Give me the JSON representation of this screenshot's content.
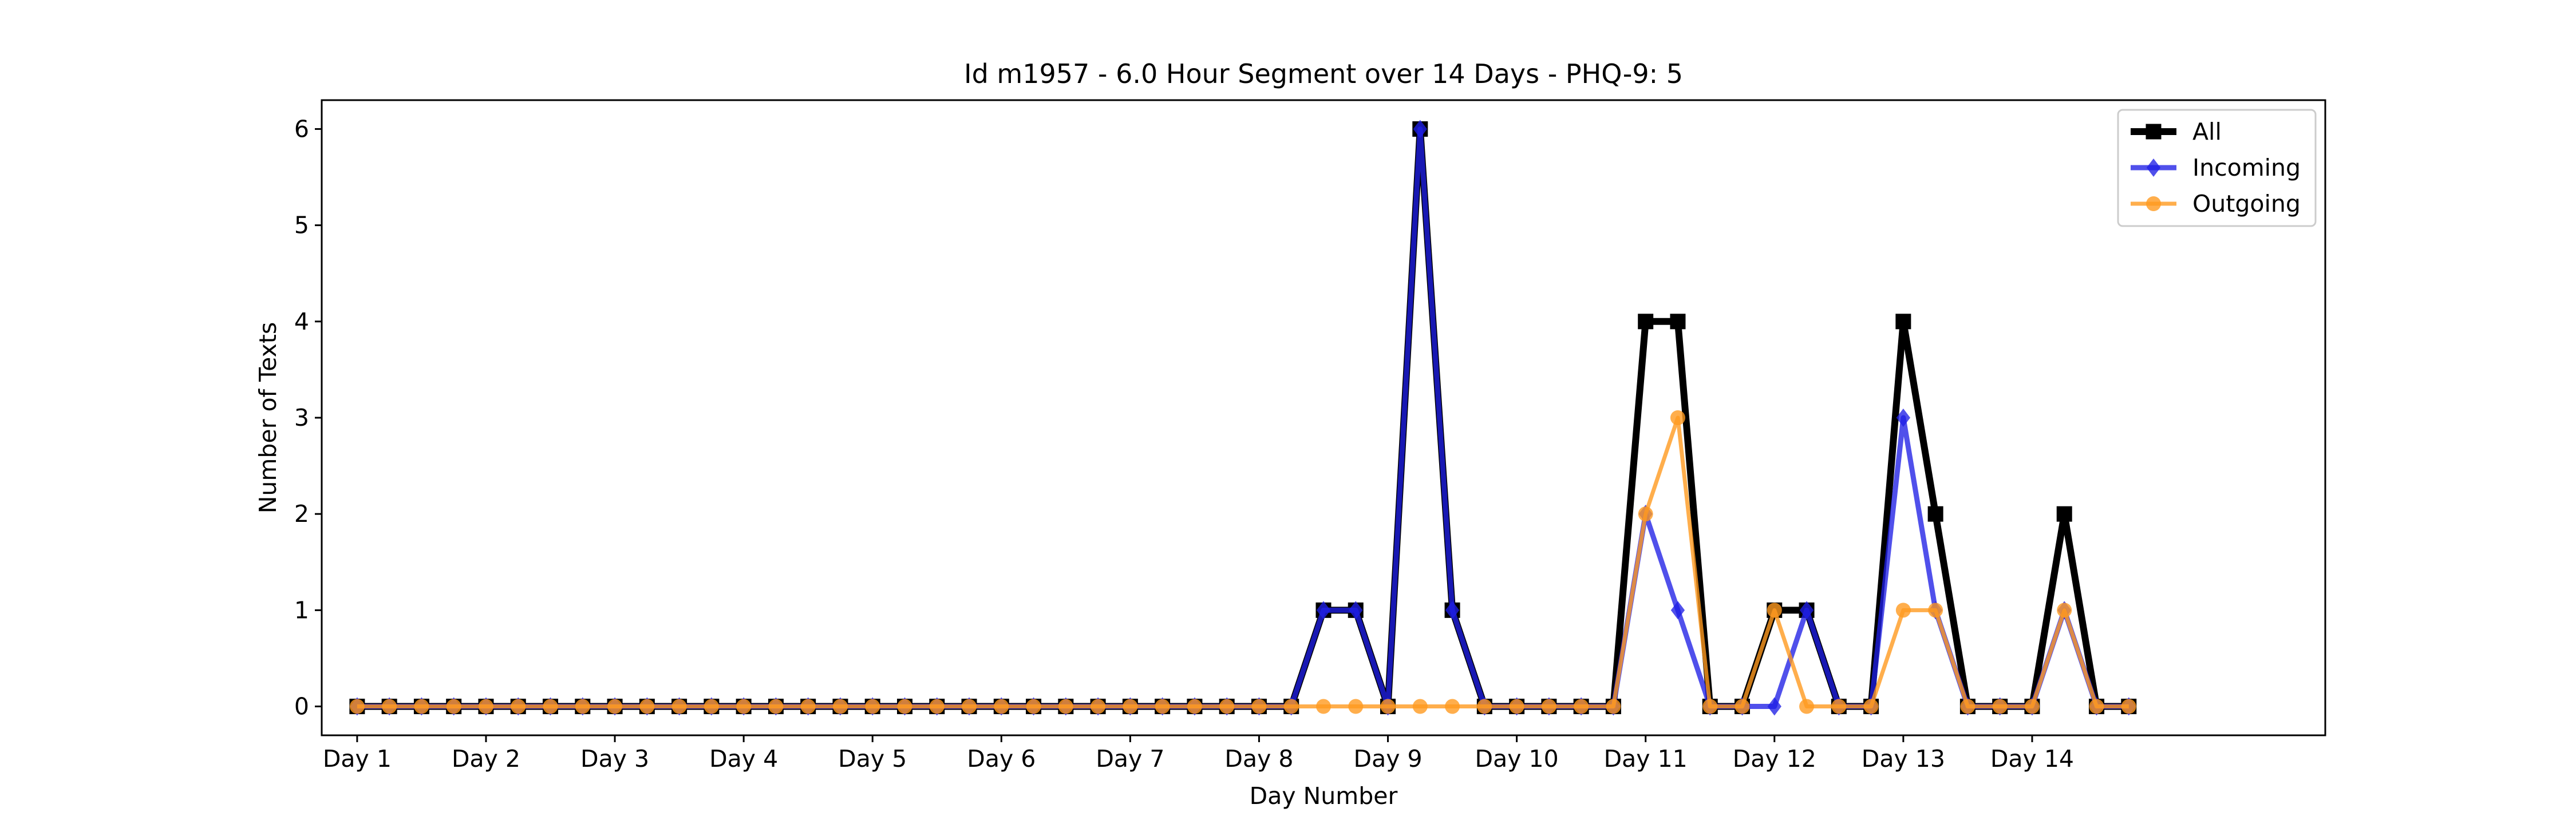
{
  "chart_data": {
    "type": "line",
    "title": "Id m1957 - 6.0 Hour Segment over 14 Days - PHQ-9: 5",
    "xlabel": "Day Number",
    "ylabel": "Number of Texts",
    "x_tick_labels": [
      "Day 1",
      "Day 2",
      "Day 3",
      "Day 4",
      "Day 5",
      "Day 6",
      "Day 7",
      "Day 8",
      "Day 9",
      "Day 10",
      "Day 11",
      "Day 12",
      "Day 13",
      "Day 14"
    ],
    "y_ticks": [
      0,
      1,
      2,
      3,
      4,
      5,
      6
    ],
    "xlim": [
      -0.275,
      15.275
    ],
    "ylim": [
      -0.3,
      6.3
    ],
    "x_step_days": 0.25,
    "grid": false,
    "legend_position": "top-right",
    "series": [
      {
        "name": "All",
        "color": "#000000",
        "marker": "square",
        "values": [
          0,
          0,
          0,
          0,
          0,
          0,
          0,
          0,
          0,
          0,
          0,
          0,
          0,
          0,
          0,
          0,
          0,
          0,
          0,
          0,
          0,
          0,
          0,
          0,
          0,
          0,
          0,
          0,
          0,
          0,
          1,
          1,
          0,
          6,
          1,
          0,
          0,
          0,
          0,
          0,
          4,
          4,
          0,
          0,
          1,
          1,
          0,
          0,
          4,
          2,
          0,
          0,
          0,
          2,
          0,
          0
        ]
      },
      {
        "name": "Incoming",
        "color": "#1f1fe6",
        "marker": "diamond",
        "values": [
          0,
          0,
          0,
          0,
          0,
          0,
          0,
          0,
          0,
          0,
          0,
          0,
          0,
          0,
          0,
          0,
          0,
          0,
          0,
          0,
          0,
          0,
          0,
          0,
          0,
          0,
          0,
          0,
          0,
          0,
          1,
          1,
          0,
          6,
          1,
          0,
          0,
          0,
          0,
          0,
          2,
          1,
          0,
          0,
          0,
          1,
          0,
          0,
          3,
          1,
          0,
          0,
          0,
          1,
          0,
          0
        ]
      },
      {
        "name": "Outgoing",
        "color": "#ff9a1f",
        "marker": "circle",
        "values": [
          0,
          0,
          0,
          0,
          0,
          0,
          0,
          0,
          0,
          0,
          0,
          0,
          0,
          0,
          0,
          0,
          0,
          0,
          0,
          0,
          0,
          0,
          0,
          0,
          0,
          0,
          0,
          0,
          0,
          0,
          0,
          0,
          0,
          0,
          0,
          0,
          0,
          0,
          0,
          0,
          2,
          3,
          0,
          0,
          1,
          0,
          0,
          0,
          1,
          1,
          0,
          0,
          0,
          1,
          0,
          0
        ]
      }
    ]
  }
}
